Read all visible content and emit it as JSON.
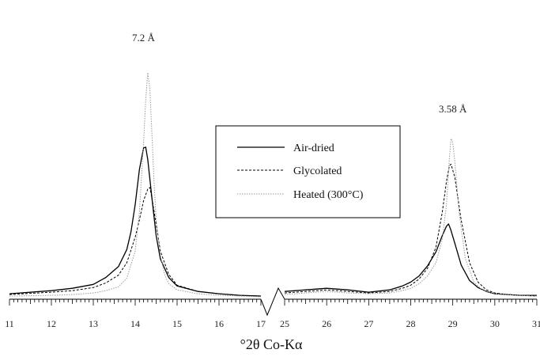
{
  "chart_data": {
    "type": "line",
    "title": "",
    "xlabel": "°2θ  Co-Kα",
    "ylabel": "",
    "broken_axis": true,
    "segments": [
      {
        "xlim": [
          11,
          17
        ],
        "ticks": [
          "11",
          "12",
          "13",
          "14",
          "15",
          "16",
          "17"
        ]
      },
      {
        "xlim": [
          25,
          31
        ],
        "ticks": [
          "25",
          "26",
          "27",
          "28",
          "29",
          "30",
          "31"
        ]
      }
    ],
    "ylim": [
      0,
      300
    ],
    "grid": false,
    "legend_position": "center",
    "annotations": [
      {
        "text": "7.2 Å",
        "x": 14.3
      },
      {
        "text": "3.58 Å",
        "x": 28.95
      }
    ],
    "series": [
      {
        "name": "Air-dried",
        "color": "#000000",
        "dash": "solid",
        "x": [
          11,
          12,
          12.5,
          13,
          13.3,
          13.6,
          13.8,
          13.9,
          14.0,
          14.1,
          14.2,
          14.25,
          14.3,
          14.4,
          14.5,
          14.6,
          14.8,
          15.0,
          15.5,
          16,
          16.5,
          17,
          25,
          25.5,
          26,
          26.5,
          27,
          27.5,
          27.8,
          28.0,
          28.2,
          28.4,
          28.6,
          28.75,
          28.85,
          28.9,
          28.95,
          29.05,
          29.2,
          29.4,
          29.6,
          29.8,
          30.0,
          30.3,
          30.6,
          31
        ],
        "y": [
          5,
          9,
          12,
          17,
          26,
          40,
          62,
          85,
          120,
          165,
          193,
          194,
          178,
          128,
          80,
          50,
          26,
          15,
          8,
          5,
          3,
          2,
          8,
          10,
          12,
          10,
          7,
          10,
          15,
          20,
          28,
          41,
          59,
          80,
          92,
          95,
          88,
          70,
          42,
          22,
          13,
          8,
          5,
          4,
          3,
          3
        ]
      },
      {
        "name": "Glycolated",
        "color": "#000000",
        "dash": "dashed",
        "x": [
          11,
          12,
          12.5,
          13,
          13.3,
          13.6,
          13.8,
          14.0,
          14.1,
          14.2,
          14.3,
          14.35,
          14.4,
          14.5,
          14.6,
          14.8,
          15.0,
          15.5,
          16,
          16.5,
          17,
          25,
          25.5,
          26,
          26.5,
          27,
          27.5,
          27.8,
          28.0,
          28.2,
          28.4,
          28.6,
          28.75,
          28.85,
          28.92,
          28.96,
          29.05,
          29.2,
          29.4,
          29.6,
          29.8,
          30.0,
          30.3,
          30.6,
          31
        ],
        "y": [
          4,
          7,
          9,
          13,
          19,
          29,
          45,
          78,
          100,
          125,
          140,
          142,
          128,
          95,
          60,
          30,
          16,
          8,
          5,
          3,
          2,
          6,
          8,
          10,
          8,
          6,
          8,
          12,
          16,
          24,
          38,
          65,
          110,
          150,
          170,
          172,
          155,
          100,
          45,
          20,
          10,
          6,
          4,
          3,
          2
        ]
      },
      {
        "name": "Heated (300°C)",
        "color": "#9a9a9a",
        "dash": "dotted",
        "x": [
          11,
          12,
          12.5,
          13,
          13.3,
          13.6,
          13.8,
          14.0,
          14.1,
          14.2,
          14.25,
          14.3,
          14.35,
          14.4,
          14.45,
          14.5,
          14.6,
          14.7,
          14.8,
          15.0,
          15.5,
          16,
          16.5,
          17,
          25,
          25.5,
          26,
          26.5,
          27,
          27.5,
          27.8,
          28.0,
          28.2,
          28.4,
          28.6,
          28.75,
          28.85,
          28.92,
          28.96,
          29.0,
          29.05,
          29.15,
          29.3,
          29.5,
          29.7,
          30.0,
          30.5,
          31
        ],
        "y": [
          2,
          3,
          4,
          6,
          9,
          14,
          25,
          60,
          110,
          200,
          255,
          290,
          270,
          210,
          150,
          100,
          55,
          30,
          18,
          10,
          5,
          3,
          2,
          1,
          4,
          6,
          8,
          6,
          5,
          6,
          9,
          12,
          18,
          28,
          45,
          75,
          120,
          180,
          205,
          200,
          175,
          110,
          50,
          20,
          10,
          5,
          3,
          2
        ]
      }
    ]
  }
}
